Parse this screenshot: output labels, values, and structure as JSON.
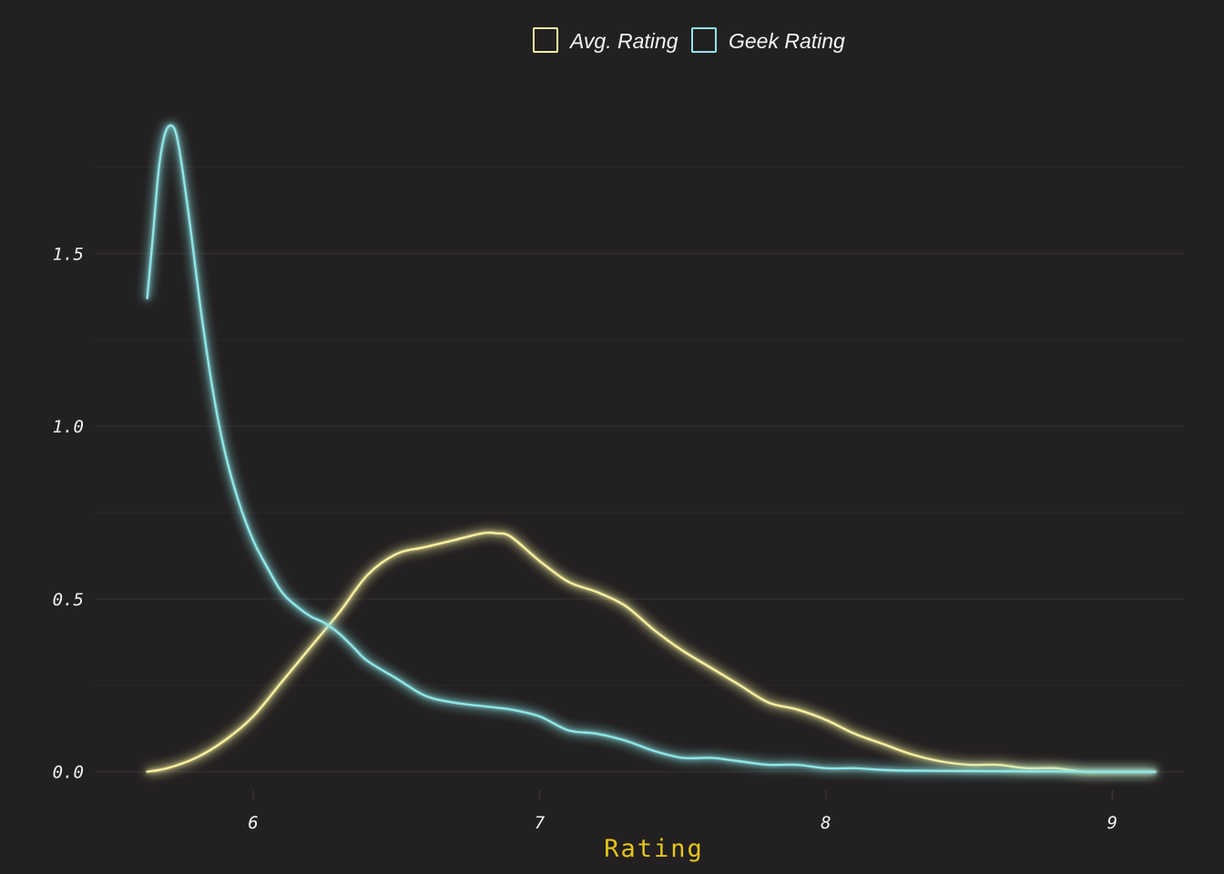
{
  "chart_data": {
    "type": "line",
    "xlabel": "Rating",
    "ylabel": "",
    "title": "",
    "xlim": [
      5.45,
      9.25
    ],
    "ylim": [
      -0.08,
      1.97
    ],
    "x_ticks": [
      {
        "value": 6,
        "label": "6"
      },
      {
        "value": 7,
        "label": "7"
      },
      {
        "value": 8,
        "label": "8"
      },
      {
        "value": 9,
        "label": "9"
      }
    ],
    "y_ticks": [
      {
        "value": 0.0,
        "label": "0.0"
      },
      {
        "value": 0.5,
        "label": "0.5"
      },
      {
        "value": 1.0,
        "label": "1.0"
      },
      {
        "value": 1.5,
        "label": "1.5"
      }
    ],
    "y_minor_grid": [
      0.25,
      0.75,
      1.25,
      1.75
    ],
    "grid": true,
    "legend_position": "top",
    "series": [
      {
        "name": "Avg. Rating",
        "color": "#f6f0a0",
        "x": [
          5.63,
          5.7,
          5.8,
          5.9,
          6.0,
          6.1,
          6.2,
          6.3,
          6.4,
          6.5,
          6.6,
          6.7,
          6.8,
          6.85,
          6.9,
          7.0,
          7.1,
          7.2,
          7.3,
          7.4,
          7.5,
          7.6,
          7.7,
          7.8,
          7.9,
          8.0,
          8.1,
          8.2,
          8.3,
          8.4,
          8.5,
          8.6,
          8.7,
          8.8,
          8.9,
          9.0,
          9.15
        ],
        "y": [
          0.0,
          0.01,
          0.04,
          0.09,
          0.16,
          0.26,
          0.36,
          0.46,
          0.57,
          0.63,
          0.65,
          0.67,
          0.69,
          0.69,
          0.68,
          0.61,
          0.55,
          0.52,
          0.48,
          0.41,
          0.35,
          0.3,
          0.25,
          0.2,
          0.18,
          0.15,
          0.11,
          0.08,
          0.05,
          0.03,
          0.02,
          0.02,
          0.01,
          0.01,
          0.0,
          0.0,
          0.0
        ]
      },
      {
        "name": "Geek Rating",
        "color": "#8fe6e6",
        "x": [
          5.63,
          5.65,
          5.67,
          5.69,
          5.71,
          5.73,
          5.75,
          5.78,
          5.82,
          5.86,
          5.9,
          5.95,
          6.0,
          6.05,
          6.1,
          6.15,
          6.2,
          6.25,
          6.3,
          6.35,
          6.4,
          6.5,
          6.6,
          6.7,
          6.8,
          6.9,
          7.0,
          7.1,
          7.2,
          7.3,
          7.4,
          7.5,
          7.6,
          7.7,
          7.8,
          7.9,
          8.0,
          8.1,
          8.2,
          8.3,
          8.5,
          8.7,
          9.0,
          9.15
        ],
        "y": [
          1.37,
          1.55,
          1.74,
          1.84,
          1.87,
          1.85,
          1.76,
          1.58,
          1.32,
          1.1,
          0.93,
          0.78,
          0.67,
          0.59,
          0.52,
          0.48,
          0.45,
          0.43,
          0.4,
          0.36,
          0.32,
          0.27,
          0.22,
          0.2,
          0.19,
          0.18,
          0.16,
          0.12,
          0.11,
          0.09,
          0.06,
          0.04,
          0.04,
          0.03,
          0.02,
          0.02,
          0.01,
          0.01,
          0.005,
          0.003,
          0.002,
          0.001,
          0.0,
          0.0
        ]
      }
    ]
  }
}
